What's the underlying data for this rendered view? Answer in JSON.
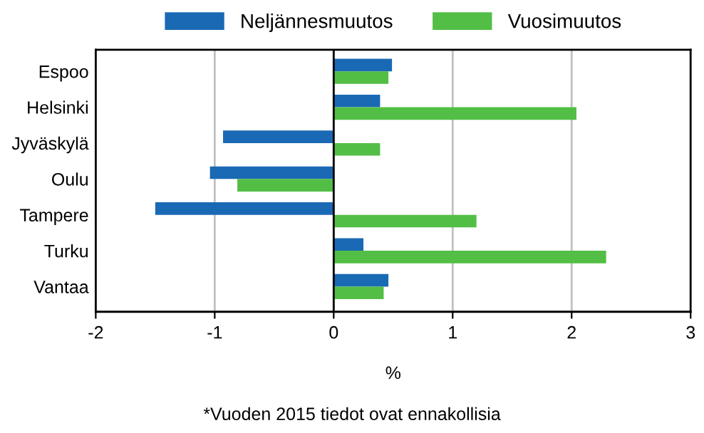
{
  "chart_data": {
    "type": "bar",
    "orientation": "horizontal",
    "categories": [
      "Espoo",
      "Helsinki",
      "Jyväskylä",
      "Oulu",
      "Tampere",
      "Turku",
      "Vantaa"
    ],
    "series": [
      {
        "name": "Neljännesmuutos",
        "color": "#1a69b4",
        "values": [
          0.49,
          0.39,
          -0.93,
          -1.04,
          -1.5,
          0.25,
          0.46
        ]
      },
      {
        "name": "Vuosimuutos",
        "color": "#52be45",
        "values": [
          0.46,
          2.04,
          0.39,
          -0.81,
          1.2,
          2.29,
          0.42
        ]
      }
    ],
    "xlim": [
      -2,
      3
    ],
    "xticks": [
      -2,
      -1,
      0,
      1,
      2,
      3
    ],
    "xlabel": "%",
    "grid": "x",
    "legend": "top",
    "annotations": [
      "*Vuoden 2015 tiedot ovat ennakollisia"
    ]
  }
}
